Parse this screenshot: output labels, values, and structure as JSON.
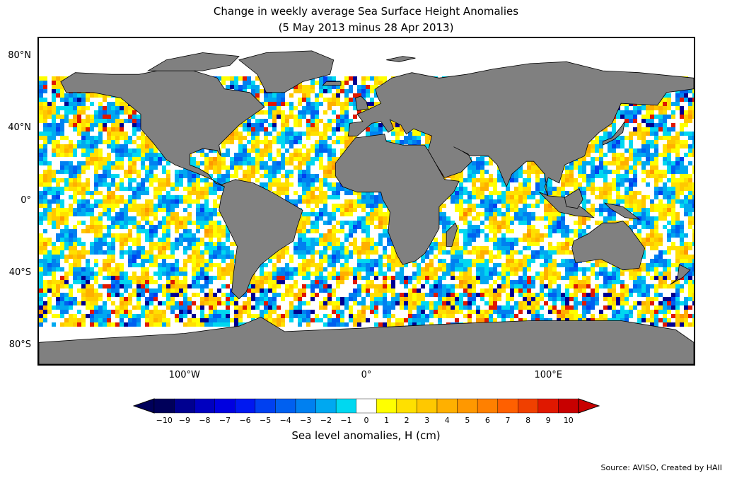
{
  "title_line1": "Change in weekly average Sea Surface Height Anomalies",
  "title_line2": "(5 May 2013 minus 28 Apr 2013)",
  "map": {
    "projection": "equirectangular",
    "lon_range": [
      -180,
      180
    ],
    "lat_range": [
      -90,
      90
    ],
    "lat_labels": [
      "80°N",
      "40°N",
      "0°",
      "40°S",
      "80°S"
    ],
    "lat_values": [
      80,
      40,
      0,
      -40,
      -80
    ],
    "lon_labels": [
      "100°W",
      "0°",
      "100°E"
    ],
    "lon_values": [
      -100,
      0,
      100
    ],
    "land_color": "#808080",
    "no_data_color": "#ffffff"
  },
  "colorbar": {
    "label": "Sea level anomalies, H (cm)",
    "tick_labels": [
      "−10",
      "−9",
      "−8",
      "−7",
      "−6",
      "−5",
      "−4",
      "−3",
      "−2",
      "−1",
      "0",
      "1",
      "2",
      "3",
      "4",
      "5",
      "6",
      "7",
      "8",
      "9",
      "10"
    ],
    "colors": [
      "#00005a",
      "#000090",
      "#0000c0",
      "#0000e0",
      "#0018f0",
      "#0040f0",
      "#0060f0",
      "#0080f0",
      "#00a8f0",
      "#00d8f0",
      "#ffffff",
      "#ffff00",
      "#ffe000",
      "#ffc800",
      "#ffb000",
      "#ff9800",
      "#ff8000",
      "#ff6000",
      "#f04000",
      "#e01800",
      "#c80000"
    ],
    "under_color": "#00005a",
    "over_color": "#c80000",
    "extend": "both"
  },
  "source": "Source: AVISO, Created by HAII"
}
